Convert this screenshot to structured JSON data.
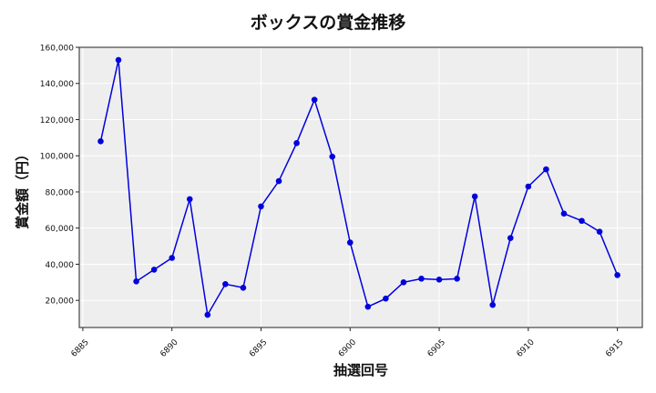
{
  "chart_data": {
    "type": "line",
    "title": "ボックスの賞金推移",
    "xlabel": "抽選回号",
    "ylabel": "賞金額（円）",
    "x": [
      6886,
      6887,
      6888,
      6889,
      6890,
      6891,
      6892,
      6893,
      6894,
      6895,
      6896,
      6897,
      6898,
      6899,
      6900,
      6901,
      6902,
      6903,
      6904,
      6905,
      6906,
      6907,
      6908,
      6909,
      6910,
      6911,
      6912,
      6913,
      6914,
      6915
    ],
    "series": [
      {
        "values": [
          108000,
          153000,
          30500,
          37000,
          43500,
          76000,
          12000,
          29000,
          27000,
          72000,
          86000,
          107000,
          131000,
          99500,
          52000,
          16500,
          21000,
          30000,
          32000,
          31500,
          32000,
          77500,
          17500,
          54500,
          83000,
          92500,
          68000,
          64000,
          58000,
          34000
        ],
        "color": "#0000dd"
      }
    ],
    "xlim": [
      6884.8,
      6916.4
    ],
    "ylim": [
      5000,
      160000
    ],
    "xticks": [
      6885,
      6890,
      6895,
      6900,
      6905,
      6910,
      6915
    ],
    "yticks": [
      20000,
      40000,
      60000,
      80000,
      100000,
      120000,
      140000,
      160000
    ],
    "xtick_labels": [
      "6885",
      "6890",
      "6895",
      "6900",
      "6905",
      "6910",
      "6915"
    ],
    "ytick_labels": [
      "20,000",
      "40,000",
      "60,000",
      "80,000",
      "100,000",
      "120,000",
      "140,000",
      "160,000"
    ],
    "grid": true,
    "background": "#eeeeee"
  }
}
